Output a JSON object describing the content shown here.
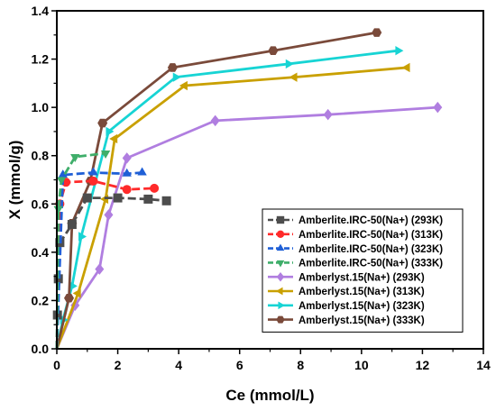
{
  "chart_data": {
    "type": "line",
    "xlabel": "Ce (mmol/L)",
    "ylabel": "X (mmol/g)",
    "xlim": [
      0,
      14
    ],
    "ylim": [
      0,
      1.4
    ],
    "xticks": [
      0,
      2,
      4,
      6,
      8,
      10,
      12,
      14
    ],
    "yticks": [
      0.0,
      0.2,
      0.4,
      0.6,
      0.8,
      1.0,
      1.2,
      1.4
    ],
    "xtick_labels": [
      "0",
      "2",
      "4",
      "6",
      "8",
      "10",
      "12",
      "14"
    ],
    "ytick_labels": [
      "0.0",
      "0.2",
      "0.4",
      "0.6",
      "0.8",
      "1.0",
      "1.2",
      "1.4"
    ],
    "grid": false,
    "legend_position": "bottom-right",
    "series": [
      {
        "name": "Amberlite.IRC-50(Na+) (293K)",
        "color": "#4d4d4d",
        "marker": "square",
        "dashed": true,
        "x": [
          0.0,
          0.02,
          0.05,
          0.1,
          0.5,
          1.0,
          2.0,
          3.0,
          3.6
        ],
        "y": [
          0.0,
          0.14,
          0.29,
          0.44,
          0.515,
          0.625,
          0.625,
          0.62,
          0.613
        ]
      },
      {
        "name": "Amberlite.IRC-50(Na+) (313K)",
        "color": "#ff2a2a",
        "marker": "circle",
        "dashed": true,
        "x": [
          0.0,
          0.1,
          0.3,
          1.2,
          2.3,
          3.2
        ],
        "y": [
          0.0,
          0.6,
          0.69,
          0.695,
          0.66,
          0.665
        ]
      },
      {
        "name": "Amberlite.IRC-50(Na+) (323K)",
        "color": "#1f5fd6",
        "marker": "triangle-up",
        "dashed": true,
        "x": [
          0.0,
          0.2,
          1.2,
          2.3,
          2.8
        ],
        "y": [
          0.0,
          0.72,
          0.73,
          0.725,
          0.73
        ]
      },
      {
        "name": "Amberlite.IRC-50(Na+) (333K)",
        "color": "#3fae6a",
        "marker": "triangle-down",
        "dashed": true,
        "x": [
          0.0,
          0.05,
          0.15,
          0.6,
          1.6
        ],
        "y": [
          0.0,
          0.58,
          0.7,
          0.795,
          0.81
        ]
      },
      {
        "name": "Amberlyst.15(Na+) (293K)",
        "color": "#b07ee0",
        "marker": "diamond",
        "dashed": false,
        "x": [
          0.0,
          0.9,
          1.9,
          2.2,
          2.6,
          5.2,
          8.9,
          12.5
        ],
        "y": [
          0.0,
          0.18,
          0.33,
          0.555,
          0.79,
          0.945,
          0.97,
          1.0
        ],
        "draw_x": [
          0.0,
          0.6,
          1.4,
          1.7,
          2.3,
          5.2,
          8.9,
          12.5
        ]
      },
      {
        "name": "Amberlyst.15(Na+) (313K)",
        "color": "#c9a000",
        "marker": "triangle-left",
        "dashed": false,
        "x": [
          0.0,
          0.7,
          1.6,
          1.9,
          4.2,
          7.8,
          11.5
        ],
        "y": [
          0.0,
          0.23,
          0.62,
          0.87,
          1.09,
          1.125,
          1.165
        ]
      },
      {
        "name": "Amberlyst.15(Na+) (323K)",
        "color": "#17d4d4",
        "marker": "triangle-right",
        "dashed": false,
        "x": [
          0.0,
          0.2,
          0.5,
          0.8,
          1.7,
          3.9,
          7.6,
          11.2
        ],
        "y": [
          0.0,
          0.12,
          0.26,
          0.465,
          0.9,
          1.125,
          1.18,
          1.235
        ]
      },
      {
        "name": "Amberlyst.15(Na+) (333K)",
        "color": "#7a4a3a",
        "marker": "hexagon",
        "dashed": false,
        "x": [
          0.0,
          0.4,
          0.5,
          1.1,
          1.5,
          3.8,
          7.1,
          10.5
        ],
        "y": [
          0.0,
          0.21,
          0.52,
          0.695,
          0.935,
          1.165,
          1.235,
          1.31
        ]
      }
    ]
  }
}
